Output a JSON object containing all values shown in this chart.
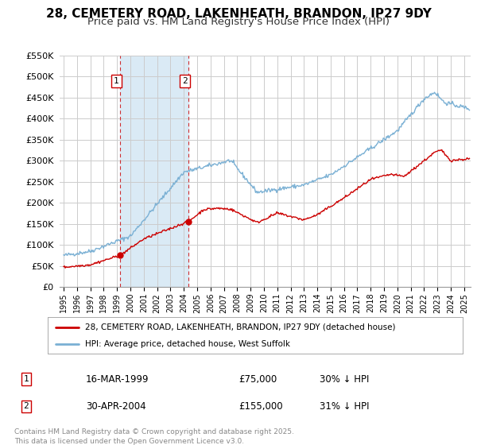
{
  "title": "28, CEMETERY ROAD, LAKENHEATH, BRANDON, IP27 9DY",
  "subtitle": "Price paid vs. HM Land Registry's House Price Index (HPI)",
  "ylim": [
    0,
    550000
  ],
  "xlim_start": 1994.7,
  "xlim_end": 2025.5,
  "yticks": [
    0,
    50000,
    100000,
    150000,
    200000,
    250000,
    300000,
    350000,
    400000,
    450000,
    500000,
    550000
  ],
  "ytick_labels": [
    "£0",
    "£50K",
    "£100K",
    "£150K",
    "£200K",
    "£250K",
    "£300K",
    "£350K",
    "£400K",
    "£450K",
    "£500K",
    "£550K"
  ],
  "xticks": [
    1995,
    1996,
    1997,
    1998,
    1999,
    2000,
    2001,
    2002,
    2003,
    2004,
    2005,
    2006,
    2007,
    2008,
    2009,
    2010,
    2011,
    2012,
    2013,
    2014,
    2015,
    2016,
    2017,
    2018,
    2019,
    2020,
    2021,
    2022,
    2023,
    2024,
    2025
  ],
  "line1_color": "#cc0000",
  "line2_color": "#7ab0d4",
  "marker_color": "#cc0000",
  "sale1_x": 1999.21,
  "sale1_y": 75000,
  "sale2_x": 2004.33,
  "sale2_y": 155000,
  "vline1_x": 1999.21,
  "vline2_x": 2004.33,
  "shade_color": "#daeaf5",
  "grid_color": "#cccccc",
  "legend_label1": "28, CEMETERY ROAD, LAKENHEATH, BRANDON, IP27 9DY (detached house)",
  "legend_label2": "HPI: Average price, detached house, West Suffolk",
  "table_row1": [
    "1",
    "16-MAR-1999",
    "£75,000",
    "30% ↓ HPI"
  ],
  "table_row2": [
    "2",
    "30-APR-2004",
    "£155,000",
    "31% ↓ HPI"
  ],
  "footnote": "Contains HM Land Registry data © Crown copyright and database right 2025.\nThis data is licensed under the Open Government Licence v3.0.",
  "background_color": "#ffffff",
  "title_fontsize": 11,
  "subtitle_fontsize": 9.5
}
